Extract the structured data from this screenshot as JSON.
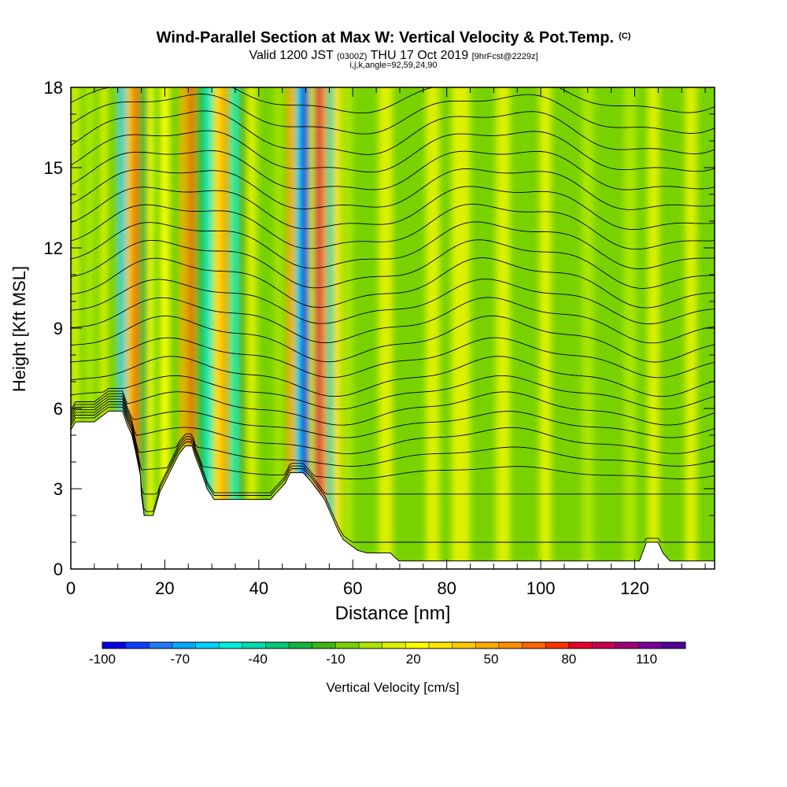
{
  "header": {
    "title": "Wind-Parallel Section at Max W: Vertical Velocity & Pot.Temp.",
    "title_mark": "(C)",
    "subtitle_a": "Valid 1200 JST",
    "subtitle_b": "(0300Z)",
    "subtitle_c": "THU 17 Oct 2019",
    "subtitle_d": "[9hrFcst@2229z]",
    "subtitle2": "i,j,k,angle=92,59,24,90"
  },
  "chart_data": {
    "type": "heatmap",
    "xlabel": "Distance [nm]",
    "ylabel": "Height [Kft MSL]",
    "xlim": [
      0,
      137
    ],
    "ylim": [
      0,
      18
    ],
    "xticks": [
      0,
      20,
      40,
      60,
      80,
      100,
      120
    ],
    "yticks": [
      0,
      3,
      6,
      9,
      12,
      15,
      18
    ],
    "grid": false,
    "colorbar": {
      "label": "Vertical Velocity [cm/s]",
      "tick_labels": [
        -100,
        -70,
        -40,
        -10,
        20,
        50,
        80,
        110
      ],
      "range": [
        -100,
        125
      ],
      "step": 10,
      "colors": [
        "#0000e6",
        "#0a3cff",
        "#1e78ff",
        "#00aaff",
        "#00d2ff",
        "#00f0dc",
        "#00dcaa",
        "#00c878",
        "#14b43c",
        "#3cb414",
        "#78d200",
        "#aae600",
        "#dcf000",
        "#ffff00",
        "#ffe600",
        "#ffc800",
        "#ffaa00",
        "#ff8c00",
        "#ff6400",
        "#ff3200",
        "#e6002d",
        "#c80050",
        "#a00078",
        "#78009b",
        "#50009b"
      ]
    },
    "vertical_velocity_columns": [
      {
        "x": 1,
        "w": 1.5,
        "v": 25
      },
      {
        "x": 4,
        "w": 2,
        "v": 15
      },
      {
        "x": 7,
        "w": 1.5,
        "v": 28
      },
      {
        "x": 9.5,
        "w": 1.2,
        "v": 5
      },
      {
        "x": 11,
        "w": 1.2,
        "v": -60
      },
      {
        "x": 12.5,
        "w": 1.2,
        "v": 50
      },
      {
        "x": 13.8,
        "w": 1.2,
        "v": 80
      },
      {
        "x": 15.5,
        "w": 1.5,
        "v": -20
      },
      {
        "x": 17,
        "w": 1.2,
        "v": 30
      },
      {
        "x": 20,
        "w": 1.8,
        "v": 35
      },
      {
        "x": 22.3,
        "w": 1.2,
        "v": 0
      },
      {
        "x": 24,
        "w": 1.2,
        "v": 60
      },
      {
        "x": 25.7,
        "w": 1.3,
        "v": 85
      },
      {
        "x": 27.5,
        "w": 1.3,
        "v": -20
      },
      {
        "x": 29.3,
        "w": 1.5,
        "v": -50
      },
      {
        "x": 31.2,
        "w": 1.4,
        "v": 40
      },
      {
        "x": 32.6,
        "w": 1.5,
        "v": 65
      },
      {
        "x": 34.8,
        "w": 1.3,
        "v": -50
      },
      {
        "x": 36.5,
        "w": 1.2,
        "v": -10
      },
      {
        "x": 38.5,
        "w": 2,
        "v": 25
      },
      {
        "x": 41.5,
        "w": 2,
        "v": 5
      },
      {
        "x": 44.2,
        "w": 1.5,
        "v": 15
      },
      {
        "x": 46.8,
        "w": 1.5,
        "v": 60
      },
      {
        "x": 48.6,
        "w": 1.2,
        "v": -60
      },
      {
        "x": 49.8,
        "w": 1.4,
        "v": -100
      },
      {
        "x": 51.3,
        "w": 1,
        "v": 20
      },
      {
        "x": 52.5,
        "w": 1.3,
        "v": 110
      },
      {
        "x": 53.8,
        "w": 1.2,
        "v": 75
      },
      {
        "x": 55.2,
        "w": 1.4,
        "v": -40
      },
      {
        "x": 56.8,
        "w": 1.5,
        "v": 45
      },
      {
        "x": 59,
        "w": 2,
        "v": 15
      },
      {
        "x": 63,
        "w": 2.5,
        "v": 5
      },
      {
        "x": 67,
        "w": 3,
        "v": 25
      },
      {
        "x": 72,
        "w": 3,
        "v": 5
      },
      {
        "x": 77,
        "w": 3,
        "v": 20
      },
      {
        "x": 83,
        "w": 4,
        "v": 28
      },
      {
        "x": 88,
        "w": 3,
        "v": 3
      },
      {
        "x": 92,
        "w": 3,
        "v": 25
      },
      {
        "x": 97,
        "w": 3,
        "v": 5
      },
      {
        "x": 101,
        "w": 2.5,
        "v": 20
      },
      {
        "x": 105,
        "w": 2.5,
        "v": 0
      },
      {
        "x": 110,
        "w": 2.5,
        "v": 15
      },
      {
        "x": 114,
        "w": 2.5,
        "v": 3
      },
      {
        "x": 119,
        "w": 2.5,
        "v": 18
      },
      {
        "x": 124,
        "w": 2.5,
        "v": 28
      },
      {
        "x": 128,
        "w": 2.5,
        "v": 5
      },
      {
        "x": 132,
        "w": 2.5,
        "v": 20
      },
      {
        "x": 136,
        "w": 2,
        "v": 5
      }
    ],
    "terrain_profile": [
      [
        0,
        5.2
      ],
      [
        1,
        5.5
      ],
      [
        5,
        5.5
      ],
      [
        8,
        5.9
      ],
      [
        11,
        5.9
      ],
      [
        12,
        5.4
      ],
      [
        13,
        5.0
      ],
      [
        14,
        4.2
      ],
      [
        14.8,
        3.5
      ],
      [
        15,
        2.8
      ],
      [
        15.6,
        2.0
      ],
      [
        17.5,
        2.0
      ],
      [
        19,
        2.9
      ],
      [
        21,
        3.6
      ],
      [
        23,
        4.3
      ],
      [
        24.4,
        4.6
      ],
      [
        25.8,
        4.6
      ],
      [
        26.5,
        4.2
      ],
      [
        27.6,
        3.7
      ],
      [
        29,
        3.0
      ],
      [
        30.5,
        2.6
      ],
      [
        42.5,
        2.6
      ],
      [
        43.5,
        2.8
      ],
      [
        45.6,
        3.2
      ],
      [
        46.7,
        3.6
      ],
      [
        49.4,
        3.6
      ],
      [
        51,
        3.3
      ],
      [
        54,
        2.6
      ],
      [
        57,
        1.4
      ],
      [
        58,
        1.1
      ],
      [
        61,
        0.7
      ],
      [
        63,
        0.6
      ],
      [
        68,
        0.6
      ],
      [
        69.8,
        0.3
      ],
      [
        121,
        0.3
      ],
      [
        122.5,
        1.0
      ],
      [
        125,
        1.0
      ],
      [
        126,
        0.6
      ],
      [
        127.5,
        0.3
      ],
      [
        137,
        0.3
      ]
    ],
    "theta_contours": [
      {
        "base": 1.0,
        "amp": 0.0
      },
      {
        "base": 2.8,
        "amp": 0.0
      },
      {
        "base": 3.6,
        "amp": 0.2
      },
      {
        "base": 4.2,
        "amp": 0.3
      },
      {
        "base": 4.8,
        "amp": 0.4
      },
      {
        "base": 5.4,
        "amp": 0.4
      },
      {
        "base": 6.0,
        "amp": 0.5
      },
      {
        "base": 6.6,
        "amp": 0.5
      },
      {
        "base": 7.2,
        "amp": 0.6
      },
      {
        "base": 7.9,
        "amp": 0.6
      },
      {
        "base": 8.6,
        "amp": 0.7
      },
      {
        "base": 9.3,
        "amp": 0.7
      },
      {
        "base": 10.0,
        "amp": 0.7
      },
      {
        "base": 10.7,
        "amp": 0.8
      },
      {
        "base": 11.4,
        "amp": 0.8
      },
      {
        "base": 12.1,
        "amp": 0.8
      },
      {
        "base": 12.8,
        "amp": 0.8
      },
      {
        "base": 13.5,
        "amp": 0.8
      },
      {
        "base": 14.2,
        "amp": 0.8
      },
      {
        "base": 14.9,
        "amp": 0.8
      },
      {
        "base": 15.6,
        "amp": 0.8
      },
      {
        "base": 16.3,
        "amp": 0.8
      },
      {
        "base": 17.0,
        "amp": 0.7
      },
      {
        "base": 17.7,
        "amp": 0.6
      }
    ]
  }
}
